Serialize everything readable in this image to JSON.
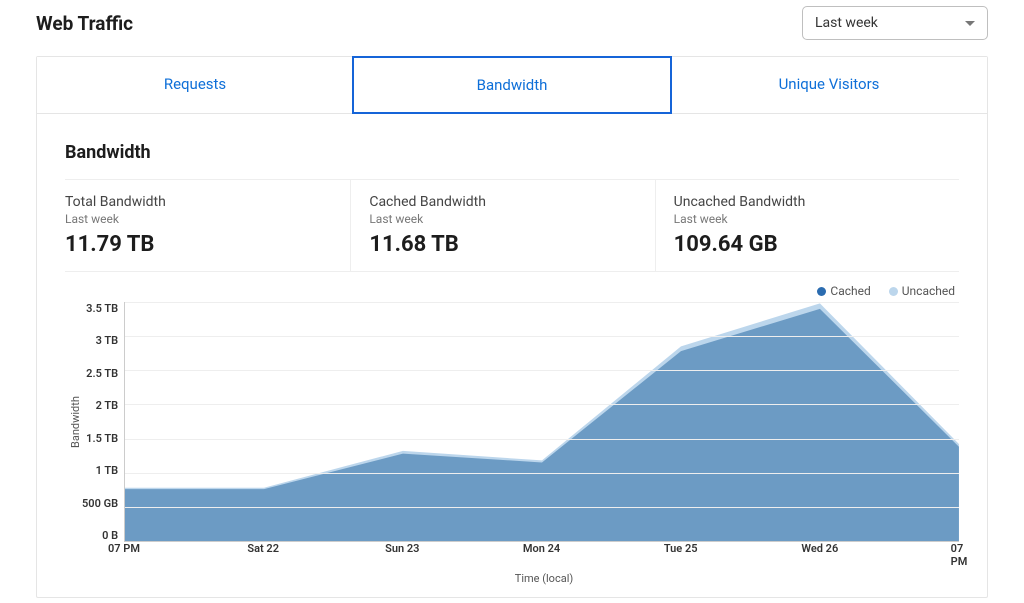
{
  "header": {
    "title": "Web Traffic",
    "timerange_selected": "Last week"
  },
  "tabs": [
    {
      "label": "Requests",
      "active": false
    },
    {
      "label": "Bandwidth",
      "active": true
    },
    {
      "label": "Unique Visitors",
      "active": false
    }
  ],
  "section_title": "Bandwidth",
  "stats": [
    {
      "label": "Total Bandwidth",
      "period": "Last week",
      "value": "11.79 TB"
    },
    {
      "label": "Cached Bandwidth",
      "period": "Last week",
      "value": "11.68 TB"
    },
    {
      "label": "Uncached Bandwidth",
      "period": "Last week",
      "value": "109.64 GB"
    }
  ],
  "chart": {
    "type": "area",
    "y_label": "Bandwidth",
    "x_label": "Time (local)",
    "ylim": [
      0,
      3.5
    ],
    "y_ticks": [
      "3.5 TB",
      "3 TB",
      "2.5 TB",
      "2 TB",
      "1.5 TB",
      "1 TB",
      "500 GB",
      "0 B"
    ],
    "x_ticks": [
      "07 PM",
      "Sat 22",
      "Sun 23",
      "Mon 24",
      "Tue 25",
      "Wed 26",
      "07 PM"
    ],
    "x_positions": [
      0,
      0.1667,
      0.3333,
      0.5,
      0.6667,
      0.8333,
      1.0
    ],
    "series": [
      {
        "name": "Uncached",
        "color": "#bcd6ec",
        "legend_color": "#bcd6ec",
        "values": [
          0.78,
          0.78,
          1.32,
          1.18,
          2.85,
          3.48,
          1.42
        ]
      },
      {
        "name": "Cached",
        "color": "#6c9bc4",
        "legend_color": "#2b6cb0",
        "values": [
          0.76,
          0.76,
          1.28,
          1.15,
          2.78,
          3.4,
          1.38
        ]
      }
    ],
    "grid_color": "#eeeeee",
    "axis_color": "#cccccc",
    "background_color": "#ffffff",
    "tick_fontsize": 11,
    "label_fontsize": 11
  }
}
